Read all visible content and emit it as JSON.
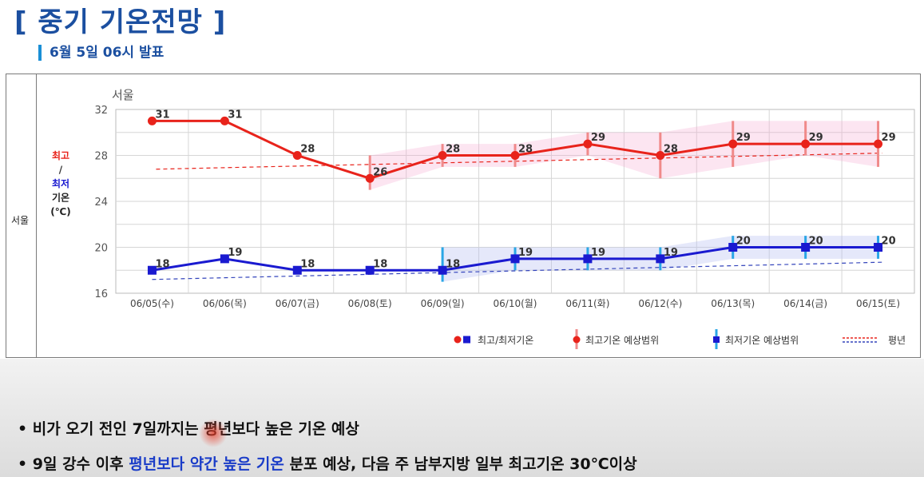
{
  "header": {
    "title": "[ 중기 기온전망 ]",
    "subtitle": "6월 5일 06시 발표"
  },
  "panel": {
    "row_label": "서울",
    "legend_axis_lines": [
      "최고",
      "/",
      "최저",
      "기온",
      "(℃)"
    ]
  },
  "chart_data": {
    "type": "line",
    "title": "서울",
    "categories": [
      "06/05(수)",
      "06/06(목)",
      "06/07(금)",
      "06/08(토)",
      "06/09(일)",
      "06/10(월)",
      "06/11(화)",
      "06/12(수)",
      "06/13(목)",
      "06/14(금)",
      "06/15(토)"
    ],
    "ylim": [
      16,
      32
    ],
    "yticks": [
      16,
      20,
      24,
      28,
      32
    ],
    "grid": true,
    "legend_position": "bottom-right",
    "series": [
      {
        "name": "최고기온",
        "color": "#e8231b",
        "values": [
          31,
          31,
          28,
          26,
          28,
          28,
          29,
          28,
          29,
          29,
          29
        ]
      },
      {
        "name": "최저기온",
        "color": "#1a1ad0",
        "values": [
          18,
          19,
          18,
          18,
          18,
          19,
          19,
          19,
          20,
          20,
          20
        ]
      }
    ],
    "max_range": {
      "color": "#f08a8a",
      "low": [
        null,
        null,
        null,
        25,
        27,
        27,
        28,
        26,
        27,
        28,
        27
      ],
      "high": [
        null,
        null,
        null,
        28,
        29,
        29,
        30,
        30,
        31,
        31,
        31
      ]
    },
    "min_range": {
      "color": "#2aa6e6",
      "low": [
        null,
        null,
        null,
        null,
        17,
        18,
        18,
        18,
        19,
        19,
        19
      ],
      "high": [
        null,
        null,
        null,
        null,
        20,
        20,
        20,
        20,
        21,
        21,
        21
      ]
    },
    "normal_max": {
      "color": "#e8231b",
      "start": 26.8,
      "end": 28.2
    },
    "normal_min": {
      "color": "#3344bb",
      "start": 17.2,
      "end": 18.7
    },
    "legend": [
      "최고/최저기온",
      "최고기온 예상범위",
      "최저기온 예상범위",
      "평년"
    ]
  },
  "bullets": {
    "b1": "비가 오기 전인 7일까지는 평년보다 높은 기온 예상",
    "b2_pre": "9일 강수 이후 ",
    "b2_hl": "평년보다 약간 높은 기온",
    "b2_post": " 분포 예상, 다음 주 남부지방 일부 최고기온 30℃이상"
  }
}
